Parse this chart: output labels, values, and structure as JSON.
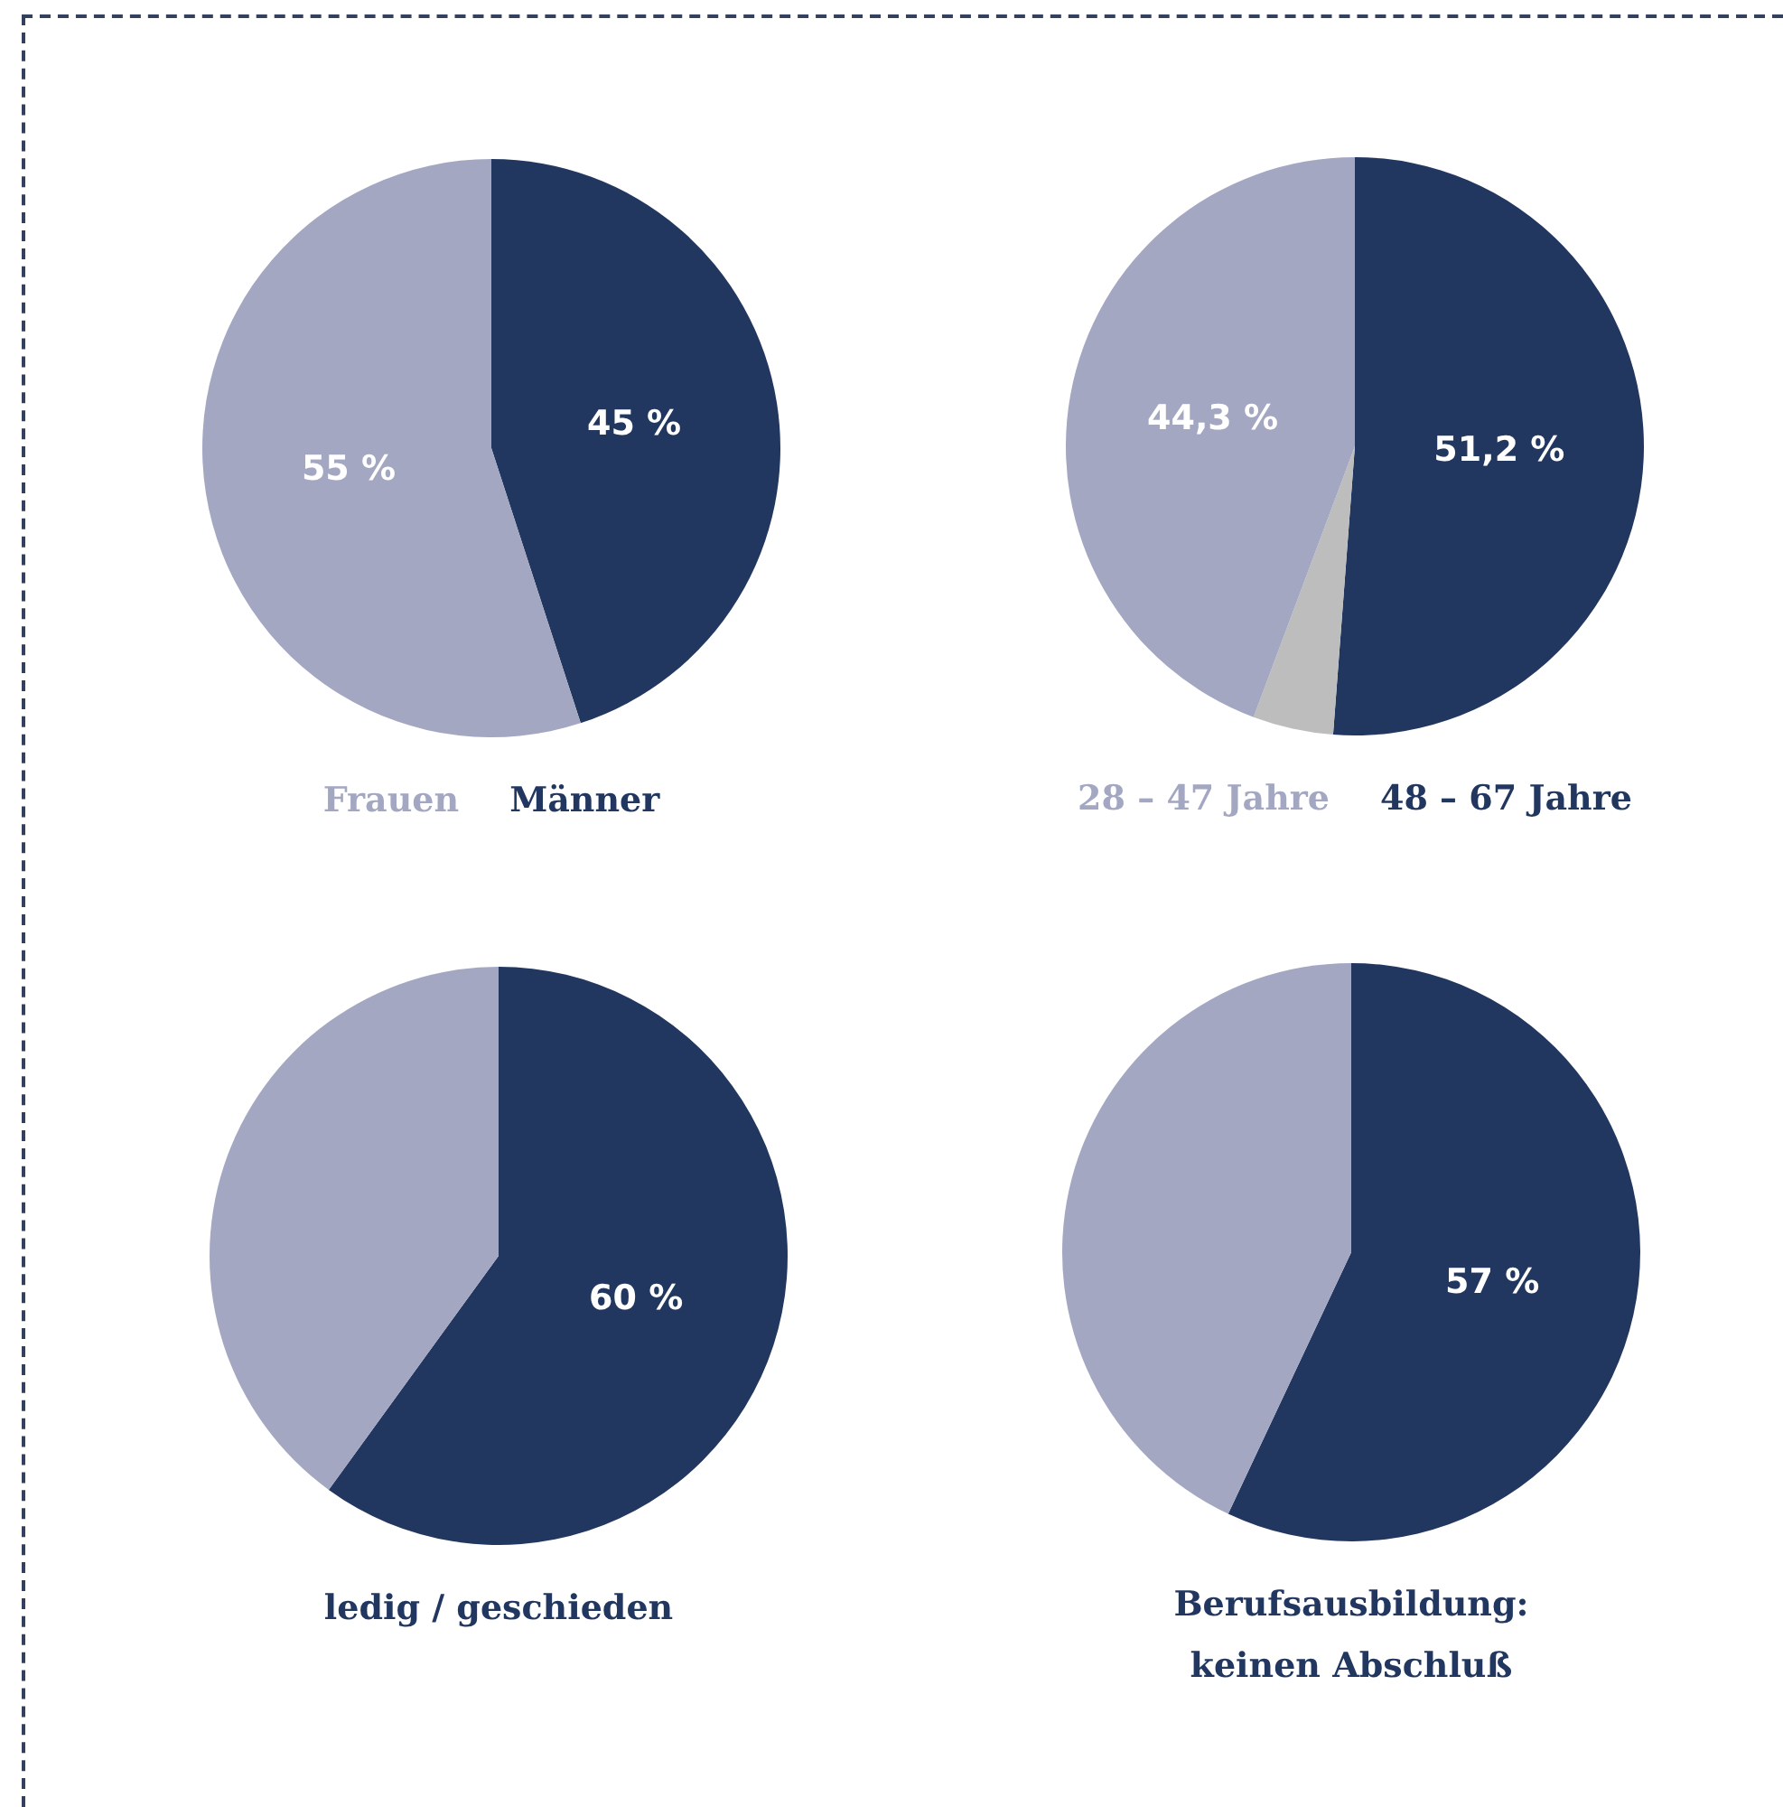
{
  "chart_data": [
    {
      "type": "pie",
      "categories": [
        "Männer",
        "Frauen"
      ],
      "values": [
        45,
        55
      ],
      "colors": [
        "#22375f",
        "#a3a7c2"
      ],
      "value_labels": [
        "45 %",
        "55 %"
      ]
    },
    {
      "type": "pie",
      "categories": [
        "48 – 67 Jahre",
        null,
        "28 – 47 Jahre"
      ],
      "values": [
        51.2,
        4.5,
        44.3
      ],
      "colors": [
        "#22375f",
        "#bdbdbd",
        "#a3a7c2"
      ],
      "value_labels": [
        "51,2 %",
        null,
        "44,3 %"
      ]
    },
    {
      "type": "pie",
      "categories": [
        "ledig / geschieden",
        null
      ],
      "values": [
        60,
        40
      ],
      "colors": [
        "#22375f",
        "#a3a7c2"
      ],
      "value_labels": [
        "60 %",
        null
      ]
    },
    {
      "type": "pie",
      "categories": [
        "Berufsausbildung: keinen Abschluß",
        null
      ],
      "values": [
        57,
        43
      ],
      "colors": [
        "#22375f",
        "#a3a7c2"
      ],
      "value_labels": [
        "57 %",
        null
      ]
    }
  ]
}
